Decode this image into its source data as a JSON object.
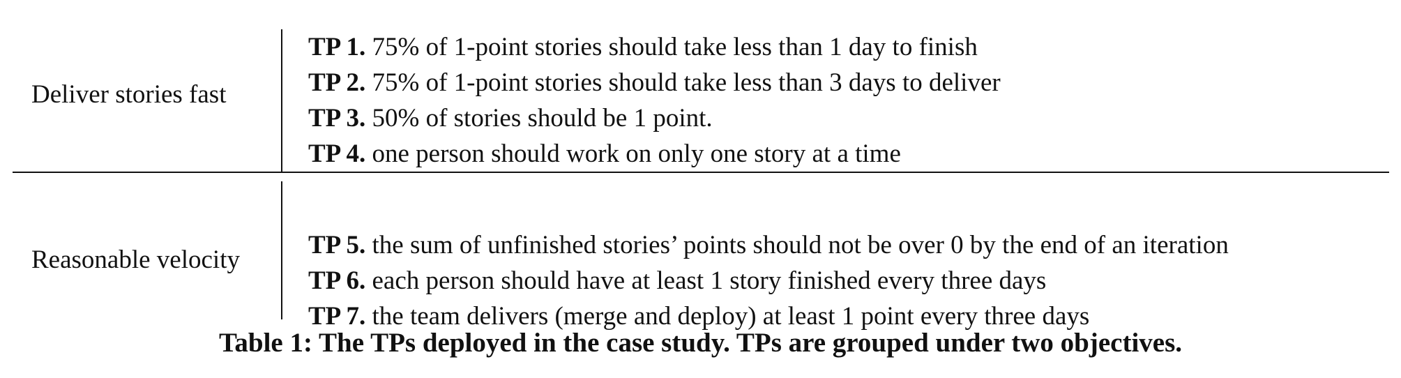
{
  "table": {
    "groups": [
      {
        "objective": "Deliver stories fast",
        "items": [
          {
            "label": "TP 1.",
            "text": " 75% of 1-point stories should take less than 1 day to finish"
          },
          {
            "label": "TP 2.",
            "text": " 75% of 1-point stories should take less than 3 days to deliver"
          },
          {
            "label": "TP 3.",
            "text": " 50% of stories should be 1 point."
          },
          {
            "label": "TP 4.",
            "text": " one person should work on only one story at a time"
          }
        ]
      },
      {
        "objective": "Reasonable velocity",
        "items": [
          {
            "label": "TP 5.",
            "text": " the sum of unfinished stories’ points should not be over 0 by the end of an iteration"
          },
          {
            "label": "TP 6.",
            "text": " each person should have at least 1 story finished every three days"
          },
          {
            "label": "TP 7.",
            "text": " the team delivers (merge and deploy) at least 1 point every three days"
          }
        ]
      }
    ]
  },
  "caption": "Table 1: The TPs deployed in the case study. TPs are grouped under two objectives."
}
